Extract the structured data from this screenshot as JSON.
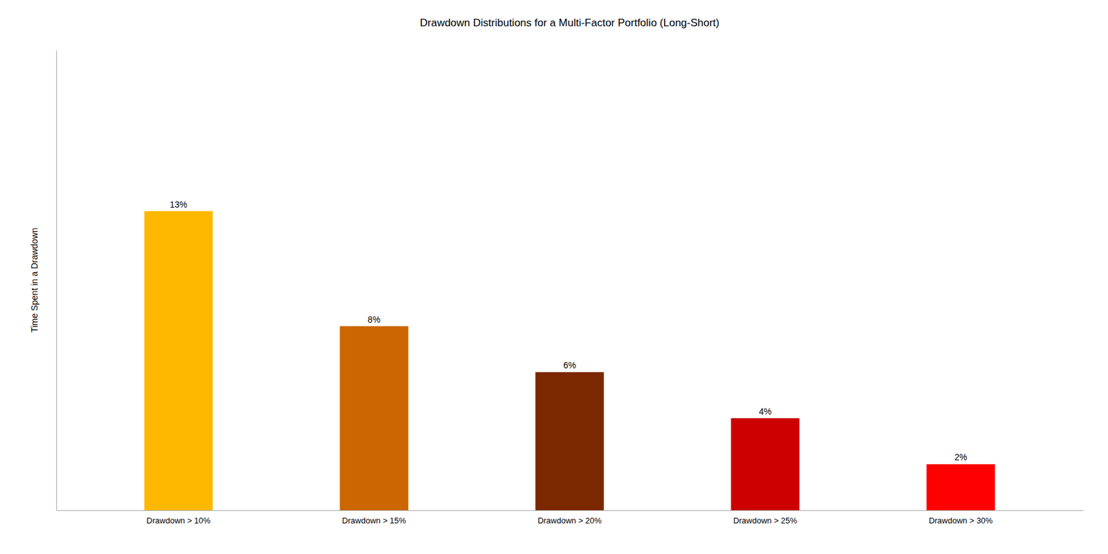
{
  "chart_data": {
    "type": "bar",
    "title": "Drawdown Distributions for a Multi-Factor Portfolio (Long-Short)",
    "ylabel": "Time Spent in a Drawdown",
    "categories": [
      "Drawdown > 10%",
      "Drawdown > 15%",
      "Drawdown > 20%",
      "Drawdown > 25%",
      "Drawdown > 30%"
    ],
    "values": [
      13,
      8,
      6,
      4,
      2
    ],
    "value_labels": [
      "13%",
      "8%",
      "6%",
      "4%",
      "2%"
    ],
    "colors": [
      "#FFB800",
      "#CC6600",
      "#7B2800",
      "#CC0000",
      "#FF0000"
    ],
    "ylim": [
      0,
      20
    ],
    "data_labels": true,
    "tick_labels": "x",
    "grid": false
  }
}
